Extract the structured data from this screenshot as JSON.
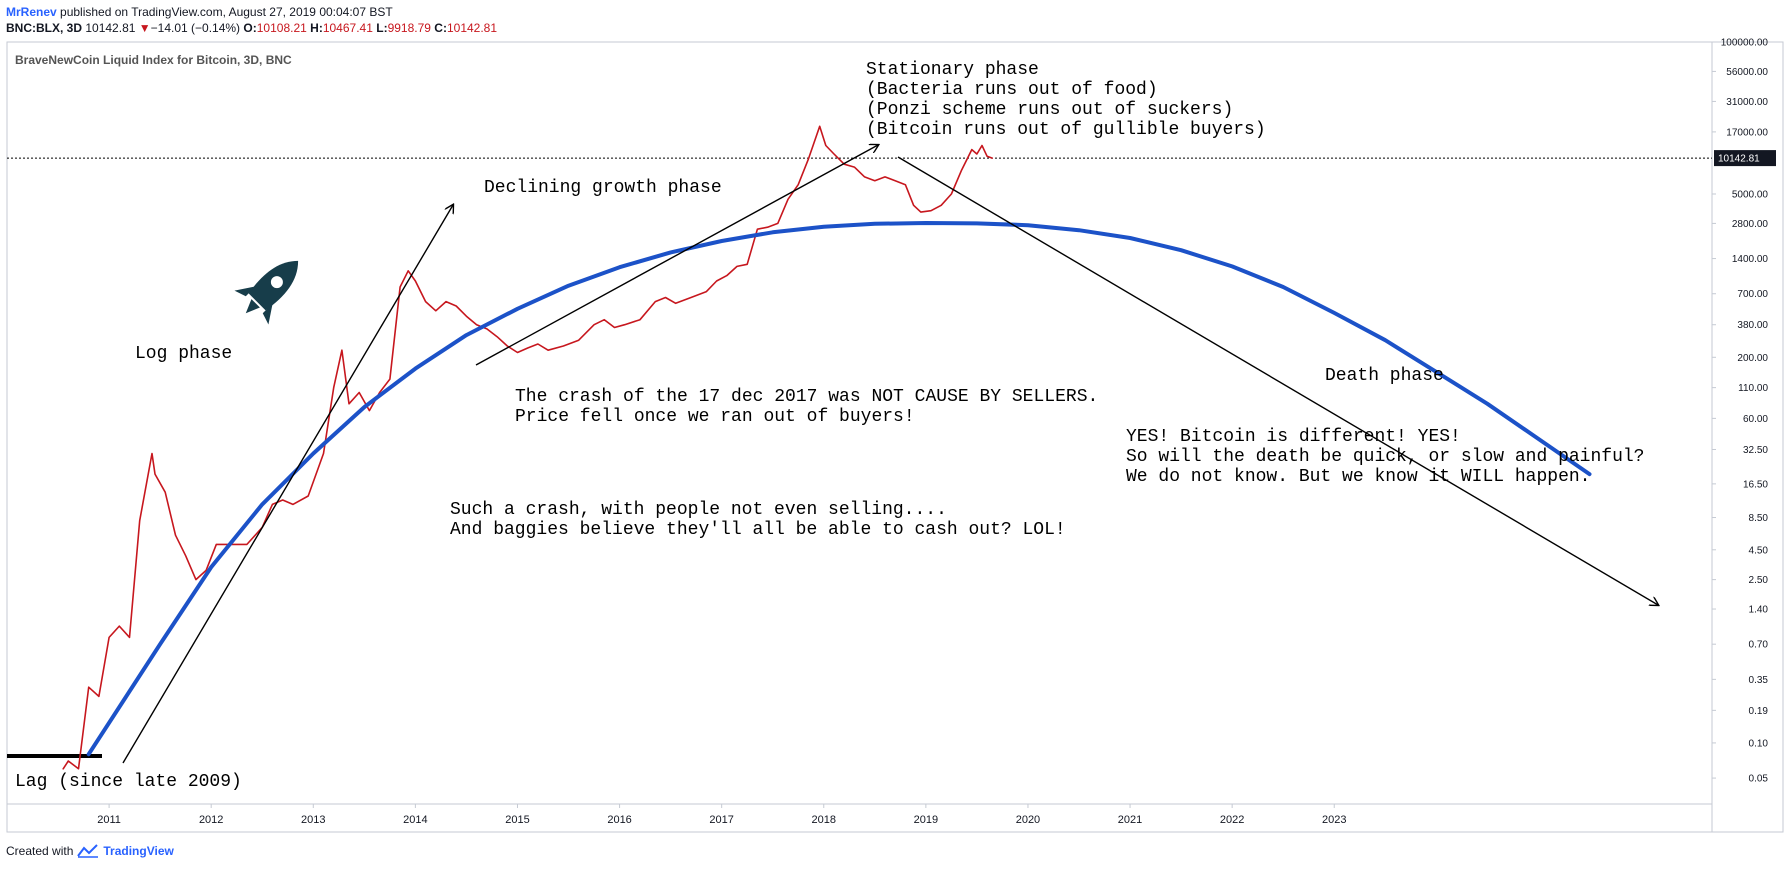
{
  "header": {
    "author": "MrRenev",
    "published": " published on TradingView.com, August 27, 2019 00:04:07 BST",
    "symbol": "BNC:BLX, 3D",
    "last": "10142.81",
    "change": "−14.01 (−0.14%)",
    "o_label": "O:",
    "o": "10108.21",
    "h_label": "H:",
    "h": "10467.41",
    "l_label": "L:",
    "l": "9918.79",
    "c_label": "C:",
    "c": "10142.81"
  },
  "footer": {
    "created": "Created with",
    "brand": "TradingView"
  },
  "chart_data": {
    "type": "line",
    "title": "BraveNewCoin Liquid Index for Bitcoin, 3D, BNC",
    "yscale": "log",
    "ylim": [
      0.03,
      100000
    ],
    "xlim": [
      2010.0,
      2026.7
    ],
    "x_ticks": [
      "2011",
      "2012",
      "2013",
      "2014",
      "2015",
      "2016",
      "2017",
      "2018",
      "2019",
      "2020",
      "2021",
      "2022",
      "2023"
    ],
    "y_ticks": [
      "100000.00",
      "56000.00",
      "31000.00",
      "17000.00",
      "10142.81",
      "5000.00",
      "2800.00",
      "1400.00",
      "700.00",
      "380.00",
      "200.00",
      "110.00",
      "60.00",
      "32.50",
      "16.50",
      "8.50",
      "4.50",
      "2.50",
      "1.40",
      "0.70",
      "0.35",
      "0.19",
      "0.10",
      "0.05"
    ],
    "last_price_label": "10142.81",
    "last_price": 10142.81,
    "series": [
      {
        "color": "#c7171e",
        "x": [
          2010.55,
          2010.6,
          2010.7,
          2010.8,
          2010.9,
          2011.0,
          2011.1,
          2011.2,
          2011.3,
          2011.42,
          2011.45,
          2011.55,
          2011.65,
          2011.75,
          2011.85,
          2011.95,
          2012.05,
          2012.2,
          2012.35,
          2012.5,
          2012.6,
          2012.7,
          2012.8,
          2012.95,
          2013.1,
          2013.2,
          2013.28,
          2013.35,
          2013.45,
          2013.55,
          2013.65,
          2013.75,
          2013.85,
          2013.93,
          2014.0,
          2014.1,
          2014.2,
          2014.3,
          2014.4,
          2014.5,
          2014.6,
          2014.7,
          2014.8,
          2014.9,
          2015.0,
          2015.1,
          2015.2,
          2015.3,
          2015.45,
          2015.6,
          2015.75,
          2015.85,
          2015.95,
          2016.05,
          2016.2,
          2016.35,
          2016.45,
          2016.55,
          2016.7,
          2016.85,
          2016.95,
          2017.05,
          2017.15,
          2017.25,
          2017.35,
          2017.45,
          2017.55,
          2017.65,
          2017.75,
          2017.85,
          2017.96,
          2018.02,
          2018.1,
          2018.2,
          2018.3,
          2018.4,
          2018.5,
          2018.6,
          2018.7,
          2018.8,
          2018.88,
          2018.95,
          2019.05,
          2019.15,
          2019.25,
          2019.35,
          2019.45,
          2019.5,
          2019.55,
          2019.6,
          2019.65
        ],
        "values": [
          0.06,
          0.07,
          0.06,
          0.3,
          0.25,
          0.8,
          1.0,
          0.8,
          8,
          30,
          20,
          14,
          6,
          4,
          2.5,
          3,
          5,
          5,
          5,
          7,
          11,
          12,
          11,
          13,
          30,
          110,
          230,
          80,
          100,
          70,
          100,
          130,
          800,
          1100,
          900,
          600,
          500,
          600,
          550,
          450,
          380,
          350,
          300,
          250,
          220,
          240,
          260,
          230,
          250,
          280,
          380,
          420,
          360,
          380,
          420,
          600,
          650,
          580,
          650,
          730,
          900,
          1000,
          1200,
          1250,
          2500,
          2600,
          2800,
          4500,
          6000,
          10000,
          19000,
          13000,
          11000,
          9000,
          8500,
          7000,
          6500,
          7000,
          6500,
          6000,
          4000,
          3500,
          3600,
          4000,
          5000,
          8000,
          12000,
          11000,
          13000,
          10500,
          10142.81
        ]
      },
      {
        "color": "#1c52c8",
        "x": [
          2010.8,
          2011.5,
          2012.0,
          2012.5,
          2013.0,
          2013.5,
          2014.0,
          2014.5,
          2015.0,
          2015.5,
          2016.0,
          2016.5,
          2017.0,
          2017.5,
          2018.0,
          2018.5,
          2019.0,
          2019.5,
          2020.0,
          2020.5,
          2021.0,
          2021.5,
          2022.0,
          2022.5,
          2023.0,
          2023.5,
          2024.0,
          2024.5,
          2025.0,
          2025.5
        ],
        "values": [
          0.08,
          0.7,
          3.2,
          11,
          30,
          75,
          160,
          310,
          520,
          820,
          1180,
          1580,
          1980,
          2350,
          2620,
          2780,
          2820,
          2800,
          2700,
          2450,
          2100,
          1650,
          1200,
          800,
          480,
          280,
          150,
          80,
          40,
          20
        ]
      }
    ]
  },
  "annotations": {
    "log_phase": "Log phase",
    "declining_phase": "Declining growth phase",
    "stationary": [
      "Stationary phase",
      "(Bacteria runs out of food)",
      "(Ponzi scheme runs out of suckers)",
      "(Bitcoin runs out of gullible buyers)"
    ],
    "death_phase": "Death phase",
    "crash": [
      "The crash of the 17 dec 2017 was NOT CAUSE BY SELLERS.",
      "Price fell once we ran out of buyers!"
    ],
    "bitcoin_different": [
      "YES! Bitcoin is different! YES!",
      "So will the death be quick, or slow and painful?",
      "We do not know. But we know it WILL happen."
    ],
    "such_crash": [
      "Such a crash, with people not even selling....",
      "And baggies believe they'll all be able to cash out? LOL!"
    ],
    "lag": "Lag (since late 2009)",
    "rocket_icon": "rocket-icon"
  }
}
